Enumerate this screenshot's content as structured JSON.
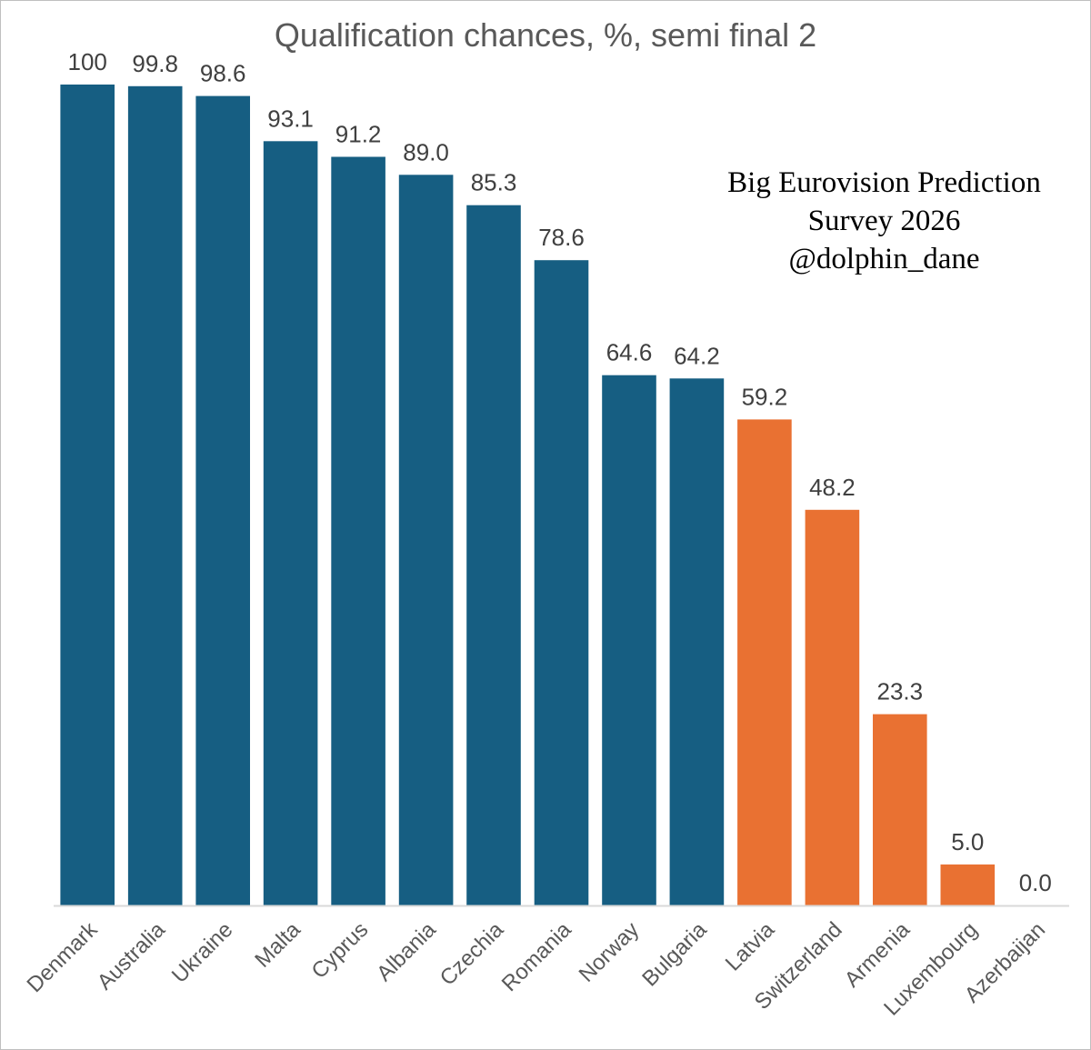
{
  "chart_data": {
    "type": "bar",
    "title": "Qualification chances, %, semi final 2",
    "xlabel": "",
    "ylabel": "",
    "ylim": [
      0,
      100
    ],
    "grid": false,
    "categories": [
      "Denmark",
      "Australia",
      "Ukraine",
      "Malta",
      "Cyprus",
      "Albania",
      "Czechia",
      "Romania",
      "Norway",
      "Bulgaria",
      "Latvia",
      "Switzerland",
      "Armenia",
      "Luxembourg",
      "Azerbaijan"
    ],
    "values": [
      100,
      99.8,
      98.6,
      93.1,
      91.2,
      89.0,
      85.3,
      78.6,
      64.6,
      64.2,
      59.2,
      48.2,
      23.3,
      5.0,
      0.0
    ],
    "value_labels": [
      "100",
      "99.8",
      "98.6",
      "93.1",
      "91.2",
      "89.0",
      "85.3",
      "78.6",
      "64.6",
      "64.2",
      "59.2",
      "48.2",
      "23.3",
      "5.0",
      "0.0"
    ],
    "groups": [
      "qualify",
      "qualify",
      "qualify",
      "qualify",
      "qualify",
      "qualify",
      "qualify",
      "qualify",
      "qualify",
      "qualify",
      "non-qualify",
      "non-qualify",
      "non-qualify",
      "non-qualify",
      "non-qualify"
    ],
    "colors": {
      "qualify": "#165e82",
      "non-qualify": "#e97132",
      "axis": "#d9d9d9"
    },
    "annotation": [
      "Big Eurovision Prediction",
      "Survey 2026",
      "@dolphin_dane"
    ]
  }
}
